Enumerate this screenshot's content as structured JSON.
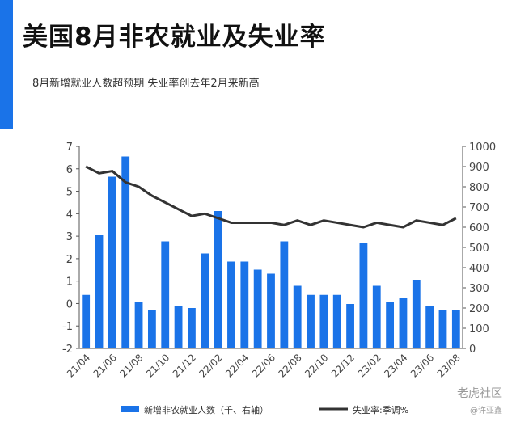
{
  "title": "美国8月非农就业及失业率",
  "subtitle": "8月新增就业人数超预期  失业率创去年2月来新高",
  "watermark": "老虎社区",
  "watermark_user": "@许亚鑫",
  "colors": {
    "bar": "#1a73e8",
    "line": "#333333",
    "accent": "#1a73e8"
  },
  "chart_data": {
    "type": "bar+line",
    "categories": [
      "21/04",
      "21/05",
      "21/06",
      "21/07",
      "21/08",
      "21/09",
      "21/10",
      "21/11",
      "21/12",
      "22/01",
      "22/02",
      "22/03",
      "22/04",
      "22/05",
      "22/06",
      "22/07",
      "22/08",
      "22/09",
      "22/10",
      "22/11",
      "22/12",
      "23/01",
      "23/02",
      "23/03",
      "23/04",
      "23/05",
      "23/06",
      "23/07",
      "23/08"
    ],
    "x_tick_labels": [
      "21/04",
      "21/06",
      "21/08",
      "21/10",
      "21/12",
      "22/02",
      "22/04",
      "22/06",
      "22/08",
      "22/10",
      "22/12",
      "23/02",
      "23/04",
      "23/06",
      "23/08"
    ],
    "left_ticks": [
      -2,
      -1,
      0,
      1,
      2,
      3,
      4,
      5,
      6,
      7
    ],
    "right_ticks": [
      0,
      100,
      200,
      300,
      400,
      500,
      600,
      700,
      800,
      900,
      1000
    ],
    "ylim_left": [
      -2,
      7
    ],
    "ylim_right": [
      0,
      1000
    ],
    "series": [
      {
        "name": "新增非农就业人数（千、右轴）",
        "type": "bar",
        "axis": "right",
        "values": [
          265,
          560,
          850,
          950,
          230,
          190,
          530,
          210,
          200,
          470,
          680,
          430,
          430,
          390,
          370,
          530,
          310,
          265,
          265,
          265,
          220,
          520,
          310,
          230,
          250,
          340,
          210,
          190,
          190
        ]
      },
      {
        "name": "失业率:季调%",
        "type": "line",
        "axis": "left",
        "values": [
          6.1,
          5.8,
          5.9,
          5.4,
          5.2,
          4.8,
          4.5,
          4.2,
          3.9,
          4.0,
          3.8,
          3.6,
          3.6,
          3.6,
          3.6,
          3.5,
          3.7,
          3.5,
          3.7,
          3.6,
          3.5,
          3.4,
          3.6,
          3.5,
          3.4,
          3.7,
          3.6,
          3.5,
          3.8
        ]
      }
    ],
    "legend_position": "bottom"
  }
}
